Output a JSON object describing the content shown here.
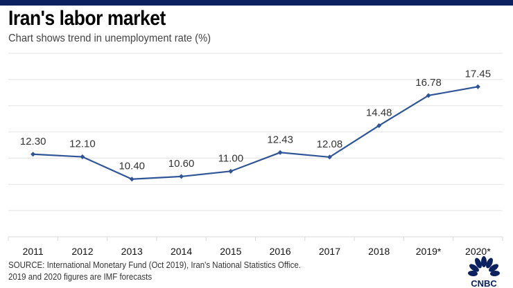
{
  "title": "Iran's labor market",
  "subtitle": "Chart shows trend in unemployment rate (%)",
  "source_line1": "SOURCE: International Monetary Fund (Oct 2019), Iran's National Statistics Office.",
  "source_line2": "2019 and 2020 figures are IMF forecasts",
  "logo": "CNBC",
  "colors": {
    "topbar": "#0b2160",
    "line": "#2f5597",
    "logo": "#0b2160"
  },
  "chart_data": {
    "type": "line",
    "title": "Iran's labor market",
    "subtitle": "Chart shows trend in unemployment rate (%)",
    "categories": [
      "2011",
      "2012",
      "2013",
      "2014",
      "2015",
      "2016",
      "2017",
      "2018",
      "2019*",
      "2020*"
    ],
    "values": [
      12.3,
      12.1,
      10.4,
      10.6,
      11.0,
      12.43,
      12.08,
      14.48,
      16.78,
      17.45
    ],
    "labels": [
      "12.30",
      "12.10",
      "10.40",
      "10.60",
      "11.00",
      "12.43",
      "12.08",
      "14.48",
      "16.78",
      "17.45"
    ],
    "ylim": [
      6,
      20
    ],
    "grid": true,
    "y_tick_labels_shown": false,
    "legend": "none"
  }
}
